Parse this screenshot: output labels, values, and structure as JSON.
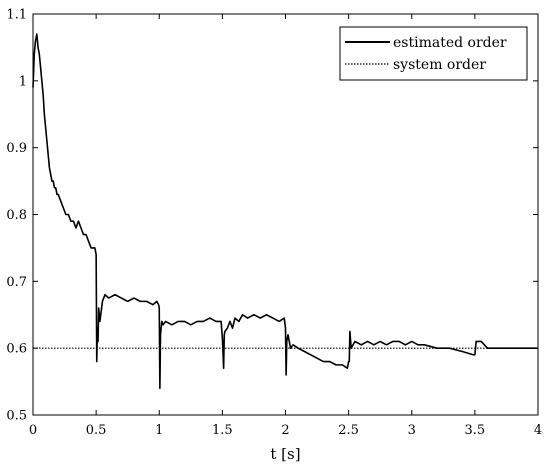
{
  "chart_data": {
    "type": "line",
    "title": "",
    "xlabel": "t [s]",
    "ylabel": "",
    "xlim": [
      0,
      4
    ],
    "ylim": [
      0.5,
      1.1
    ],
    "x_ticks": [
      "0",
      "0.5",
      "1",
      "1.5",
      "2",
      "2.5",
      "3",
      "3.5",
      "4"
    ],
    "y_ticks": [
      "0.5",
      "0.6",
      "0.7",
      "0.8",
      "0.9",
      "1",
      "1.1"
    ],
    "grid": false,
    "legend_position": "top-right",
    "series": [
      {
        "name": "estimated order",
        "style": "solid",
        "color": "#000000",
        "x": [
          0,
          0.01,
          0.02,
          0.03,
          0.04,
          0.05,
          0.06,
          0.07,
          0.08,
          0.09,
          0.1,
          0.11,
          0.12,
          0.13,
          0.14,
          0.15,
          0.16,
          0.17,
          0.18,
          0.19,
          0.2,
          0.22,
          0.24,
          0.26,
          0.28,
          0.3,
          0.32,
          0.34,
          0.36,
          0.38,
          0.4,
          0.42,
          0.44,
          0.46,
          0.48,
          0.49,
          0.5,
          0.505,
          0.51,
          0.515,
          0.52,
          0.53,
          0.55,
          0.57,
          0.6,
          0.65,
          0.7,
          0.75,
          0.8,
          0.85,
          0.9,
          0.95,
          0.98,
          0.995,
          1.0,
          1.005,
          1.01,
          1.02,
          1.03,
          1.05,
          1.1,
          1.15,
          1.2,
          1.25,
          1.3,
          1.35,
          1.4,
          1.45,
          1.49,
          1.5,
          1.51,
          1.515,
          1.52,
          1.54,
          1.56,
          1.58,
          1.6,
          1.63,
          1.66,
          1.7,
          1.75,
          1.8,
          1.85,
          1.9,
          1.95,
          1.99,
          2.0,
          2.005,
          2.01,
          2.02,
          2.04,
          2.06,
          2.1,
          2.15,
          2.2,
          2.25,
          2.3,
          2.35,
          2.4,
          2.45,
          2.49,
          2.5,
          2.505,
          2.51,
          2.52,
          2.55,
          2.6,
          2.65,
          2.7,
          2.75,
          2.8,
          2.85,
          2.9,
          2.95,
          3.0,
          3.05,
          3.1,
          3.2,
          3.3,
          3.4,
          3.49,
          3.5,
          3.51,
          3.55,
          3.6,
          3.7,
          3.8,
          3.9,
          4.0
        ],
        "y": [
          0.99,
          1.04,
          1.06,
          1.07,
          1.05,
          1.04,
          1.02,
          1.0,
          0.98,
          0.95,
          0.93,
          0.91,
          0.89,
          0.87,
          0.86,
          0.85,
          0.85,
          0.84,
          0.84,
          0.83,
          0.83,
          0.82,
          0.81,
          0.8,
          0.8,
          0.79,
          0.79,
          0.78,
          0.79,
          0.78,
          0.77,
          0.77,
          0.76,
          0.75,
          0.75,
          0.75,
          0.74,
          0.58,
          0.63,
          0.61,
          0.66,
          0.64,
          0.67,
          0.68,
          0.675,
          0.68,
          0.675,
          0.67,
          0.675,
          0.67,
          0.67,
          0.665,
          0.67,
          0.665,
          0.66,
          0.54,
          0.62,
          0.64,
          0.635,
          0.64,
          0.635,
          0.64,
          0.64,
          0.635,
          0.64,
          0.64,
          0.645,
          0.64,
          0.64,
          0.615,
          0.57,
          0.62,
          0.625,
          0.63,
          0.64,
          0.63,
          0.645,
          0.64,
          0.65,
          0.645,
          0.65,
          0.645,
          0.65,
          0.645,
          0.64,
          0.645,
          0.63,
          0.56,
          0.61,
          0.62,
          0.6,
          0.605,
          0.6,
          0.595,
          0.59,
          0.585,
          0.58,
          0.58,
          0.575,
          0.575,
          0.57,
          0.58,
          0.58,
          0.625,
          0.6,
          0.61,
          0.605,
          0.61,
          0.605,
          0.61,
          0.605,
          0.61,
          0.61,
          0.605,
          0.61,
          0.605,
          0.605,
          0.6,
          0.6,
          0.595,
          0.59,
          0.59,
          0.61,
          0.61,
          0.6,
          0.6,
          0.6,
          0.6,
          0.6
        ]
      },
      {
        "name": "system order",
        "style": "dotted",
        "color": "#000000",
        "x": [
          0,
          4
        ],
        "y": [
          0.6,
          0.6
        ]
      }
    ]
  }
}
